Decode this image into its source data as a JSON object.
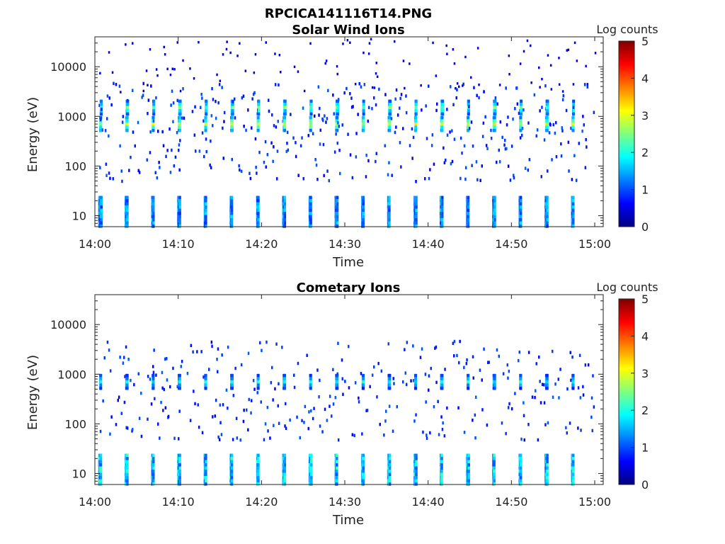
{
  "figure_title": "RPCICA141116T14.PNG",
  "chart_data": [
    {
      "type": "heatmap",
      "title": "Solar Wind Ions",
      "xlabel": "Time",
      "ylabel": "Energy (eV)",
      "x_range": [
        "14:00",
        "15:00"
      ],
      "x_ticks": [
        "14:00",
        "14:10",
        "14:20",
        "14:30",
        "14:40",
        "14:50",
        "15:00"
      ],
      "y_scale": "log",
      "y_range": [
        6,
        40000
      ],
      "y_ticks": [
        "10",
        "100",
        "1000",
        "10000"
      ],
      "colorbar": {
        "label": "Log counts",
        "range": [
          0,
          5
        ],
        "ticks": [
          "0",
          "1",
          "2",
          "3",
          "4",
          "5"
        ],
        "colormap": "jet"
      },
      "scan_period_min": 3.15,
      "features": [
        {
          "energy_eV": 700,
          "level": 3.0,
          "description": "periodic peaks at ~700 eV"
        },
        {
          "energy_eV": 1500,
          "level": 2.5,
          "description": "periodic peaks at ~1.5 keV"
        },
        {
          "energy_eV": 12,
          "level": 1.6,
          "description": "low-energy vertical stripes 6–25 eV"
        }
      ]
    },
    {
      "type": "heatmap",
      "title": "Cometary Ions",
      "xlabel": "Time",
      "ylabel": "Energy (eV)",
      "x_range": [
        "14:00",
        "15:00"
      ],
      "x_ticks": [
        "14:00",
        "14:10",
        "14:20",
        "14:30",
        "14:40",
        "14:50",
        "15:00"
      ],
      "y_scale": "log",
      "y_range": [
        6,
        40000
      ],
      "y_ticks": [
        "10",
        "100",
        "1000",
        "10000"
      ],
      "colorbar": {
        "label": "Log counts",
        "range": [
          0,
          5
        ],
        "ticks": [
          "0",
          "1",
          "2",
          "3",
          "4",
          "5"
        ],
        "colormap": "jet"
      },
      "scan_period_min": 3.15,
      "features": [
        {
          "energy_eV": 700,
          "level": 2.0,
          "description": "weak periodic peaks at ~700 eV"
        },
        {
          "energy_eV": 12,
          "level": 2.0,
          "description": "low-energy vertical stripes 6–25 eV"
        }
      ]
    }
  ]
}
